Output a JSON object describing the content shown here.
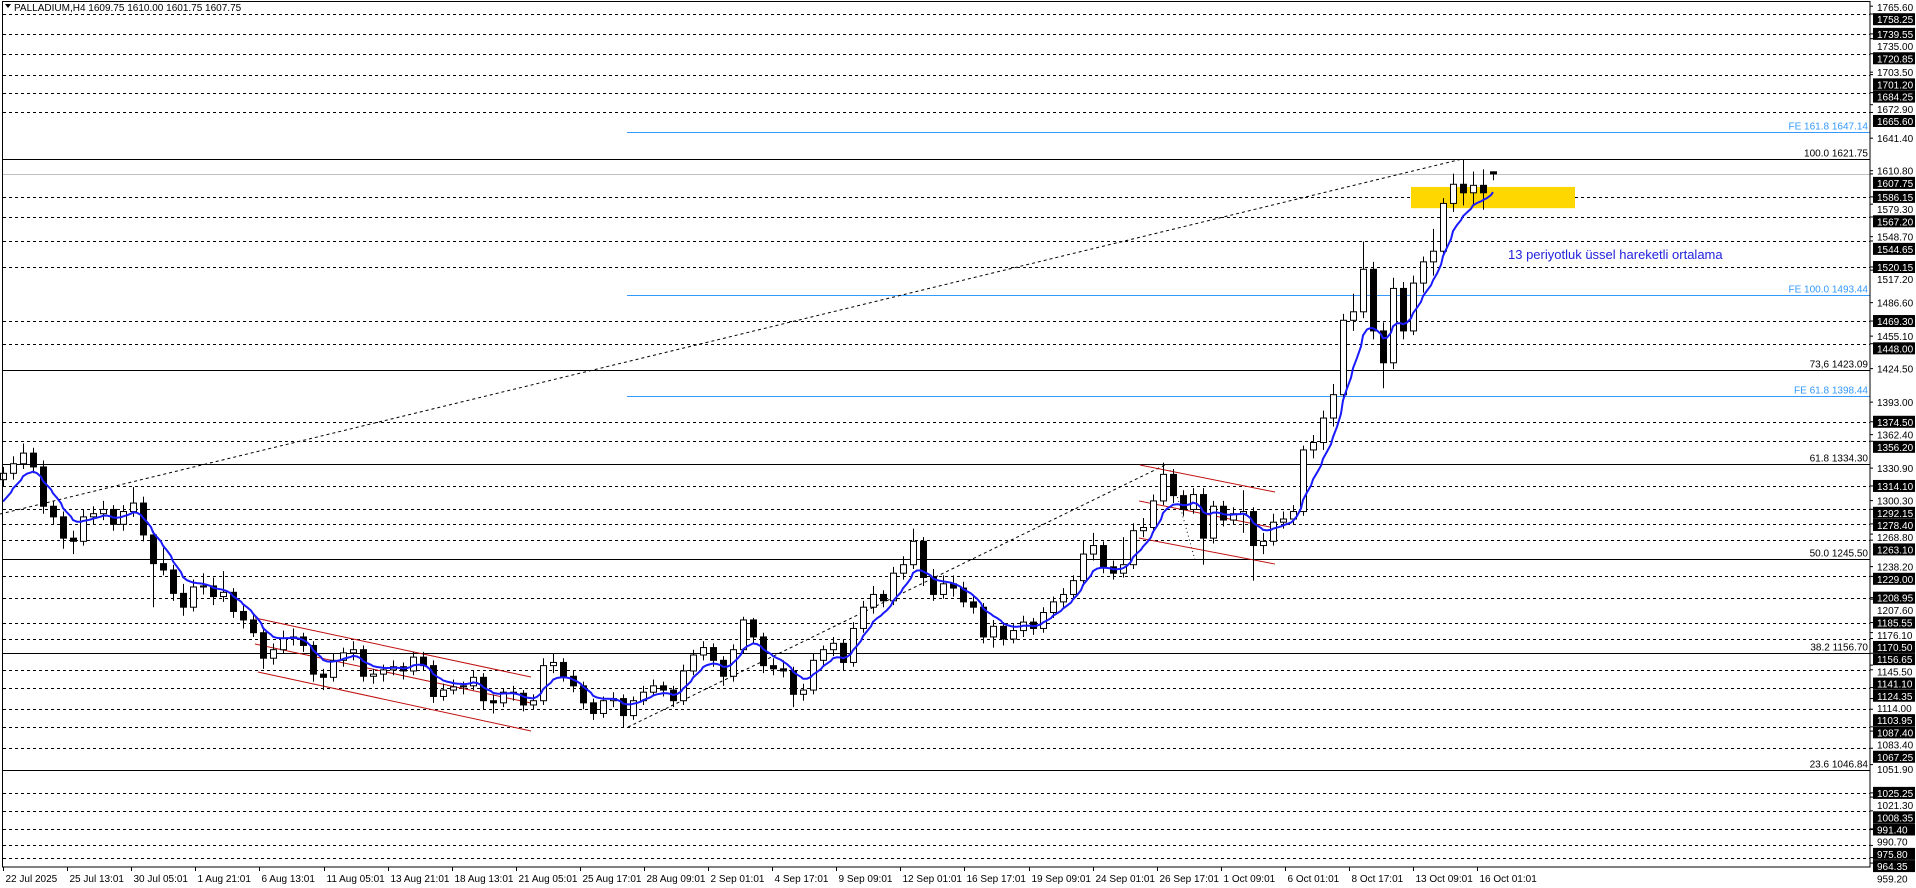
{
  "window": {
    "title": "PALLADIUM,H4  1609.75 1610.00 1601.75 1607.75",
    "menu_icon": "triangle-down-icon"
  },
  "colors": {
    "ema": "#1a1aff",
    "fib_expansion": "#3399ff",
    "fib_retracement": "#000000",
    "channel": "#c01010",
    "zone": "#ffd700",
    "bid_line": "#c0c0c0",
    "annotation": "#2222dd"
  },
  "chart_data": {
    "type": "candlestick",
    "symbol": "PALLADIUM",
    "timeframe": "H4",
    "last_bar": {
      "open": 1609.75,
      "high": 1610.0,
      "low": 1601.75,
      "close": 1607.75
    },
    "ylim": [
      959.2,
      1765.6
    ],
    "grid": false,
    "x_tick_labels": [
      "22 Jul 2025",
      "25 Jul 13:01",
      "30 Jul 05:01",
      "1 Aug 21:01",
      "6 Aug 13:01",
      "11 Aug 05:01",
      "13 Aug 21:01",
      "18 Aug 13:01",
      "21 Aug 05:01",
      "25 Aug 17:01",
      "28 Aug 09:01",
      "2 Sep 01:01",
      "4 Sep 17:01",
      "9 Sep 09:01",
      "12 Sep 01:01",
      "16 Sep 17:01",
      "19 Sep 09:01",
      "24 Sep 01:01",
      "26 Sep 17:01",
      "1 Oct 09:01",
      "6 Oct 01:01",
      "8 Oct 17:01",
      "13 Oct 09:01",
      "16 Oct 01:01"
    ],
    "y_tick_labels": [
      "1765.60",
      "1735.00",
      "1703.50",
      "1672.90",
      "1641.40",
      "1610.80",
      "1579.30",
      "1548.70",
      "1517.20",
      "1486.60",
      "1455.10",
      "1424.50",
      "1393.00",
      "1362.40",
      "1330.90",
      "1300.30",
      "1268.80",
      "1238.20",
      "1207.60",
      "1176.10",
      "1145.50",
      "1114.00",
      "1083.40",
      "1051.90",
      "1021.30",
      "990.70",
      "959.20"
    ],
    "ohlc": [
      [
        1320,
        1332,
        1314,
        1326
      ],
      [
        1326,
        1342,
        1320,
        1335
      ],
      [
        1335,
        1354,
        1330,
        1345
      ],
      [
        1345,
        1350,
        1326,
        1332
      ],
      [
        1332,
        1338,
        1288,
        1295
      ],
      [
        1295,
        1300,
        1278,
        1285
      ],
      [
        1285,
        1290,
        1255,
        1265
      ],
      [
        1265,
        1272,
        1250,
        1262
      ],
      [
        1262,
        1292,
        1258,
        1285
      ],
      [
        1285,
        1295,
        1278,
        1288
      ],
      [
        1288,
        1300,
        1282,
        1292
      ],
      [
        1292,
        1296,
        1272,
        1278
      ],
      [
        1278,
        1296,
        1272,
        1290
      ],
      [
        1290,
        1313,
        1285,
        1298
      ],
      [
        1298,
        1304,
        1262,
        1268
      ],
      [
        1268,
        1272,
        1200,
        1241
      ],
      [
        1241,
        1256,
        1230,
        1235
      ],
      [
        1235,
        1240,
        1206,
        1213
      ],
      [
        1213,
        1222,
        1192,
        1200
      ],
      [
        1200,
        1226,
        1196,
        1219
      ],
      [
        1219,
        1232,
        1212,
        1220
      ],
      [
        1220,
        1228,
        1202,
        1210
      ],
      [
        1210,
        1234,
        1205,
        1214
      ],
      [
        1214,
        1218,
        1190,
        1196
      ],
      [
        1196,
        1202,
        1180,
        1188
      ],
      [
        1188,
        1194,
        1172,
        1176
      ],
      [
        1176,
        1180,
        1142,
        1152
      ],
      [
        1152,
        1166,
        1146,
        1160
      ],
      [
        1160,
        1178,
        1156,
        1171
      ],
      [
        1171,
        1180,
        1164,
        1172
      ],
      [
        1172,
        1176,
        1158,
        1164
      ],
      [
        1164,
        1168,
        1130,
        1137
      ],
      [
        1137,
        1142,
        1122,
        1134
      ],
      [
        1134,
        1156,
        1130,
        1150
      ],
      [
        1150,
        1162,
        1144,
        1157
      ],
      [
        1157,
        1168,
        1150,
        1160
      ],
      [
        1160,
        1164,
        1130,
        1135
      ],
      [
        1135,
        1142,
        1128,
        1137
      ],
      [
        1137,
        1146,
        1130,
        1141
      ],
      [
        1141,
        1150,
        1136,
        1144
      ],
      [
        1144,
        1148,
        1132,
        1140
      ],
      [
        1140,
        1158,
        1136,
        1153
      ],
      [
        1153,
        1158,
        1140,
        1145
      ],
      [
        1145,
        1150,
        1110,
        1116
      ],
      [
        1116,
        1128,
        1112,
        1122
      ],
      [
        1122,
        1132,
        1118,
        1125
      ],
      [
        1125,
        1130,
        1118,
        1126
      ],
      [
        1126,
        1140,
        1122,
        1134
      ],
      [
        1134,
        1138,
        1104,
        1112
      ],
      [
        1112,
        1118,
        1100,
        1110
      ],
      [
        1110,
        1124,
        1106,
        1120
      ],
      [
        1120,
        1126,
        1112,
        1119
      ],
      [
        1119,
        1122,
        1102,
        1108
      ],
      [
        1108,
        1118,
        1104,
        1112
      ],
      [
        1112,
        1152,
        1108,
        1145
      ],
      [
        1145,
        1156,
        1138,
        1148
      ],
      [
        1148,
        1152,
        1130,
        1135
      ],
      [
        1135,
        1140,
        1120,
        1126
      ],
      [
        1126,
        1130,
        1104,
        1110
      ],
      [
        1110,
        1114,
        1094,
        1100
      ],
      [
        1100,
        1116,
        1096,
        1112
      ],
      [
        1112,
        1120,
        1106,
        1114
      ],
      [
        1114,
        1118,
        1087,
        1098
      ],
      [
        1098,
        1116,
        1094,
        1112
      ],
      [
        1112,
        1126,
        1108,
        1120
      ],
      [
        1120,
        1132,
        1116,
        1126
      ],
      [
        1126,
        1130,
        1116,
        1122
      ],
      [
        1122,
        1126,
        1106,
        1112
      ],
      [
        1112,
        1146,
        1108,
        1140
      ],
      [
        1140,
        1160,
        1136,
        1155
      ],
      [
        1155,
        1168,
        1150,
        1162
      ],
      [
        1162,
        1166,
        1144,
        1150
      ],
      [
        1150,
        1154,
        1126,
        1135
      ],
      [
        1135,
        1165,
        1130,
        1160
      ],
      [
        1160,
        1191,
        1156,
        1188
      ],
      [
        1188,
        1190,
        1166,
        1172
      ],
      [
        1172,
        1176,
        1138,
        1145
      ],
      [
        1145,
        1152,
        1136,
        1142
      ],
      [
        1142,
        1150,
        1134,
        1140
      ],
      [
        1140,
        1144,
        1106,
        1118
      ],
      [
        1118,
        1128,
        1112,
        1122
      ],
      [
        1122,
        1156,
        1118,
        1150
      ],
      [
        1150,
        1164,
        1144,
        1160
      ],
      [
        1160,
        1172,
        1154,
        1166
      ],
      [
        1166,
        1170,
        1140,
        1148
      ],
      [
        1148,
        1186,
        1144,
        1180
      ],
      [
        1180,
        1206,
        1176,
        1200
      ],
      [
        1200,
        1220,
        1194,
        1212
      ],
      [
        1212,
        1216,
        1200,
        1206
      ],
      [
        1206,
        1238,
        1202,
        1232
      ],
      [
        1232,
        1248,
        1226,
        1240
      ],
      [
        1240,
        1274,
        1236,
        1262
      ],
      [
        1262,
        1266,
        1220,
        1228
      ],
      [
        1228,
        1236,
        1206,
        1212
      ],
      [
        1212,
        1230,
        1208,
        1222
      ],
      [
        1222,
        1230,
        1210,
        1218
      ],
      [
        1218,
        1224,
        1200,
        1205
      ],
      [
        1205,
        1212,
        1194,
        1200
      ],
      [
        1200,
        1204,
        1166,
        1172
      ],
      [
        1172,
        1188,
        1162,
        1182
      ],
      [
        1182,
        1186,
        1164,
        1170
      ],
      [
        1170,
        1184,
        1166,
        1178
      ],
      [
        1178,
        1192,
        1172,
        1186
      ],
      [
        1186,
        1190,
        1174,
        1180
      ],
      [
        1180,
        1200,
        1176,
        1195
      ],
      [
        1195,
        1210,
        1190,
        1205
      ],
      [
        1205,
        1218,
        1200,
        1212
      ],
      [
        1212,
        1230,
        1208,
        1225
      ],
      [
        1225,
        1263,
        1220,
        1250
      ],
      [
        1250,
        1270,
        1244,
        1258
      ],
      [
        1258,
        1262,
        1232,
        1238
      ],
      [
        1238,
        1244,
        1226,
        1232
      ],
      [
        1232,
        1266,
        1228,
        1240
      ],
      [
        1240,
        1279,
        1236,
        1272
      ],
      [
        1272,
        1284,
        1266,
        1275
      ],
      [
        1275,
        1306,
        1270,
        1300
      ],
      [
        1300,
        1336,
        1296,
        1325
      ],
      [
        1325,
        1330,
        1298,
        1305
      ],
      [
        1305,
        1310,
        1286,
        1292
      ],
      [
        1292,
        1312,
        1288,
        1306
      ],
      [
        1306,
        1312,
        1240,
        1265
      ],
      [
        1265,
        1300,
        1260,
        1295
      ],
      [
        1295,
        1300,
        1276,
        1282
      ],
      [
        1282,
        1294,
        1278,
        1288
      ],
      [
        1288,
        1310,
        1270,
        1290
      ],
      [
        1290,
        1294,
        1225,
        1258
      ],
      [
        1258,
        1270,
        1250,
        1262
      ],
      [
        1262,
        1288,
        1258,
        1280
      ],
      [
        1280,
        1290,
        1274,
        1283
      ],
      [
        1283,
        1296,
        1278,
        1290
      ],
      [
        1290,
        1352,
        1286,
        1348
      ],
      [
        1348,
        1362,
        1340,
        1355
      ],
      [
        1355,
        1385,
        1348,
        1378
      ],
      [
        1378,
        1410,
        1370,
        1400
      ],
      [
        1400,
        1476,
        1394,
        1470
      ],
      [
        1470,
        1495,
        1460,
        1478
      ],
      [
        1478,
        1544,
        1472,
        1518
      ],
      [
        1518,
        1525,
        1452,
        1460
      ],
      [
        1460,
        1468,
        1406,
        1430
      ],
      [
        1430,
        1510,
        1424,
        1500
      ],
      [
        1500,
        1506,
        1452,
        1460
      ],
      [
        1460,
        1512,
        1456,
        1505
      ],
      [
        1505,
        1530,
        1496,
        1525
      ],
      [
        1525,
        1556,
        1512,
        1535
      ],
      [
        1535,
        1585,
        1530,
        1580
      ],
      [
        1580,
        1608,
        1572,
        1598
      ],
      [
        1598,
        1621.75,
        1578,
        1590
      ],
      [
        1590,
        1610,
        1578,
        1597
      ],
      [
        1597,
        1612,
        1574,
        1590
      ],
      [
        1609.75,
        1610.0,
        1601.75,
        1607.75
      ]
    ],
    "indicator": {
      "type": "EMA",
      "period": 13,
      "label": "13 periyotluk üssel hareketli ortalama"
    },
    "bid_price": 1607.75,
    "horizontal_levels": [
      "1758.25",
      "1739.55",
      "1720.85",
      "1701.20",
      "1684.25",
      "1665.60",
      "1586.15",
      "1567.20",
      "1544.65",
      "1520.15",
      "1469.30",
      "1448.00",
      "1374.50",
      "1356.20",
      "1314.10",
      "1292.15",
      "1278.40",
      "1263.10",
      "1229.00",
      "1208.95",
      "1185.55",
      "1170.50",
      "1156.65",
      "1141.10",
      "1124.35",
      "1103.95",
      "1087.40",
      "1067.25",
      "1025.25",
      "1008.35",
      "991.40",
      "975.80",
      "964.35"
    ],
    "fib_retracement": [
      {
        "level": "100.0",
        "price": 1621.75,
        "label": "100.0 1621.75"
      },
      {
        "level": "73,6",
        "price": 1423.09,
        "label": "73,6 1423.09"
      },
      {
        "level": "61.8",
        "price": 1334.3,
        "label": "61.8 1334.30"
      },
      {
        "level": "50.0",
        "price": 1245.5,
        "label": "50.0 1245.50"
      },
      {
        "level": "38.2",
        "price": 1156.7,
        "label": "38.2 1156.70"
      },
      {
        "level": "23.6",
        "price": 1046.84,
        "label": "23.6 1046.84"
      }
    ],
    "fib_expansion": [
      {
        "level": "161.8",
        "price": 1647.14,
        "label": "FE 161.8 1647.14"
      },
      {
        "level": "100.0",
        "price": 1493.44,
        "label": "FE 100.0 1493.44"
      },
      {
        "level": "61.8",
        "price": 1398.44,
        "label": "FE 61.8 1398.44"
      }
    ],
    "zone": {
      "price_low": 1575.5,
      "price_high": 1595.5
    },
    "trendlines": [
      {
        "style": "dashed",
        "from": [
          -0.3,
          1287.7
        ],
        "to": [
          145.9,
          1621.75
        ]
      },
      {
        "style": "dashed",
        "from": [
          62.5,
          1087.2
        ],
        "to": [
          116.2,
          1333.8
        ]
      },
      {
        "style": "dotted",
        "from": [
          116.7,
          1329.0
        ],
        "to": [
          119.2,
          1244.4
        ]
      }
    ],
    "channels": [
      {
        "lines": [
          {
            "from": [
              25.2,
              1189.8
            ],
            "to": [
              52.8,
              1134.3
            ]
          },
          {
            "from": [
              25.2,
              1165.4
            ],
            "to": [
              52.8,
              1109.8
            ]
          },
          {
            "from": [
              25.5,
              1139.0
            ],
            "to": [
              52.8,
              1083.5
            ]
          }
        ]
      },
      {
        "lines": [
          {
            "from": [
              113.7,
              1333.8
            ],
            "to": [
              127.2,
              1308.4
            ]
          },
          {
            "from": [
              113.6,
              1300.0
            ],
            "to": [
              127.2,
              1274.5
            ]
          },
          {
            "from": [
              113.6,
              1265.1
            ],
            "to": [
              127.2,
              1240.6
            ]
          }
        ]
      }
    ]
  }
}
